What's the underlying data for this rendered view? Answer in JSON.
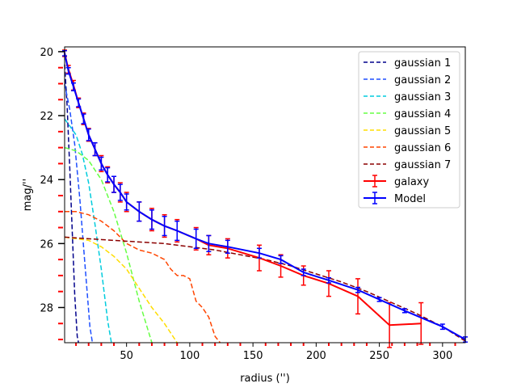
{
  "chart_data": {
    "type": "line",
    "title": "",
    "xlabel": "radius ('')",
    "ylabel": "mag/''",
    "xlim": [
      1,
      318
    ],
    "ylim": [
      29.1,
      19.85
    ],
    "y_inverted": true,
    "grid": false,
    "legend_position": "top-right",
    "x_ticks": [
      "50",
      "100",
      "150",
      "200",
      "250",
      "300"
    ],
    "y_ticks": [
      "20",
      "22",
      "24",
      "26",
      "28"
    ],
    "series": [
      {
        "name": "gaussian 1",
        "style": "dashed",
        "color": "#00008b",
        "x": [
          1,
          3,
          5,
          7,
          9,
          11,
          12
        ],
        "y": [
          20.4,
          21.7,
          23.6,
          25.6,
          27.6,
          28.9,
          29.1
        ]
      },
      {
        "name": "gaussian 2",
        "style": "dashed",
        "color": "#1e4fff",
        "x": [
          1,
          5,
          9,
          13,
          17,
          21,
          23
        ],
        "y": [
          21.0,
          21.8,
          22.9,
          24.6,
          26.6,
          28.6,
          29.1
        ]
      },
      {
        "name": "gaussian 3",
        "style": "dashed",
        "color": "#00ccdd",
        "x": [
          1,
          10,
          15,
          20,
          25,
          30,
          35,
          38
        ],
        "y": [
          22.1,
          22.6,
          23.2,
          24.1,
          25.4,
          26.8,
          28.4,
          29.1
        ]
      },
      {
        "name": "gaussian 4",
        "style": "dashed",
        "color": "#66ff44",
        "x": [
          1,
          10,
          20,
          30,
          40,
          50,
          60,
          70
        ],
        "y": [
          23.0,
          23.1,
          23.4,
          24.0,
          25.0,
          26.3,
          27.8,
          29.1
        ]
      },
      {
        "name": "gaussian 5",
        "style": "dashed",
        "color": "#ffdd00",
        "x": [
          1,
          20,
          30,
          40,
          50,
          60,
          70,
          80,
          90
        ],
        "y": [
          25.8,
          25.9,
          26.1,
          26.4,
          26.8,
          27.4,
          28.0,
          28.5,
          29.1
        ]
      },
      {
        "name": "gaussian 6",
        "style": "dashed",
        "color": "#ff4500",
        "x": [
          1,
          10,
          20,
          30,
          40,
          50,
          60,
          70,
          80,
          85,
          90,
          95,
          100,
          105,
          110,
          115,
          120,
          124
        ],
        "y": [
          25.0,
          25.0,
          25.1,
          25.3,
          25.6,
          26.0,
          26.2,
          26.3,
          26.5,
          26.8,
          27.0,
          27.0,
          27.1,
          27.8,
          28.0,
          28.3,
          28.9,
          29.1
        ]
      },
      {
        "name": "gaussian 7",
        "style": "dashed",
        "color": "#8b0000",
        "x": [
          1,
          20,
          40,
          60,
          80,
          100,
          120,
          140,
          160,
          180,
          200,
          220,
          240,
          260,
          280,
          300,
          318
        ],
        "y": [
          25.8,
          25.85,
          25.9,
          25.95,
          26.0,
          26.1,
          26.2,
          26.35,
          26.5,
          26.7,
          26.95,
          27.2,
          27.5,
          27.85,
          28.2,
          28.6,
          29.05
        ]
      },
      {
        "name": "galaxy",
        "style": "solid-errorbar",
        "color": "#ff0000",
        "x": [
          1,
          4,
          8,
          12,
          16,
          20,
          25,
          30,
          35,
          40,
          45,
          50,
          60,
          70,
          80,
          90,
          105,
          115,
          130,
          155,
          172,
          190,
          210,
          233,
          258,
          283
        ],
        "y": [
          20.05,
          20.55,
          21.05,
          21.6,
          22.1,
          22.6,
          23.05,
          23.5,
          23.85,
          24.15,
          24.4,
          24.7,
          25.0,
          25.25,
          25.45,
          25.6,
          25.85,
          26.05,
          26.15,
          26.45,
          26.7,
          27.0,
          27.25,
          27.65,
          28.55,
          28.5
        ],
        "err": [
          0.1,
          0.12,
          0.15,
          0.15,
          0.18,
          0.2,
          0.2,
          0.25,
          0.25,
          0.25,
          0.3,
          0.3,
          0.3,
          0.35,
          0.35,
          0.35,
          0.35,
          0.3,
          0.3,
          0.4,
          0.35,
          0.3,
          0.4,
          0.55,
          0.7,
          0.65
        ]
      },
      {
        "name": "Model",
        "style": "solid-errorbar",
        "color": "#0000ff",
        "x": [
          1,
          4,
          8,
          12,
          16,
          20,
          25,
          30,
          35,
          40,
          45,
          50,
          60,
          70,
          80,
          90,
          105,
          115,
          130,
          155,
          172,
          190,
          210,
          233,
          250,
          270,
          300,
          318
        ],
        "y": [
          20.05,
          20.6,
          21.1,
          21.6,
          22.1,
          22.6,
          23.05,
          23.5,
          23.85,
          24.15,
          24.4,
          24.7,
          25.0,
          25.25,
          25.45,
          25.6,
          25.85,
          26.0,
          26.1,
          26.3,
          26.5,
          26.9,
          27.15,
          27.45,
          27.75,
          28.1,
          28.6,
          29.0
        ],
        "err": [
          0.08,
          0.1,
          0.12,
          0.12,
          0.15,
          0.18,
          0.2,
          0.2,
          0.22,
          0.25,
          0.25,
          0.25,
          0.3,
          0.3,
          0.3,
          0.3,
          0.3,
          0.25,
          0.2,
          0.15,
          0.12,
          0.1,
          0.08,
          0.08,
          0.06,
          0.06,
          0.08,
          0.08
        ]
      }
    ]
  }
}
